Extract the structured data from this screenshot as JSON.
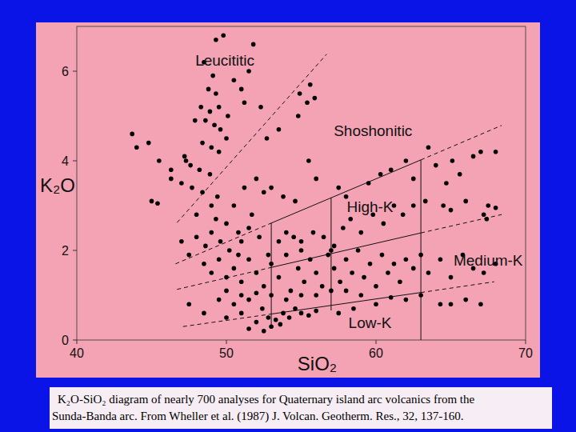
{
  "chart_data": {
    "type": "scatter",
    "x_label": "SiO₂",
    "y_label": "K₂O",
    "xlim": [
      40,
      70
    ],
    "ylim": [
      0,
      7
    ],
    "xticks": [
      40,
      50,
      60,
      70
    ],
    "yticks": [
      0,
      2,
      4,
      6
    ],
    "grid": false,
    "marker": "circle",
    "color": "#000000",
    "x": [
      49.3,
      49.8,
      51.8,
      48.5,
      49.1,
      51.5,
      48.8,
      49.3,
      50.5,
      51.0,
      48.3,
      48.9,
      49.5,
      50.1,
      51.2,
      47.9,
      48.6,
      49.2,
      49.6,
      50.0,
      48.4,
      49.0,
      49.5,
      47.2,
      47.6,
      48.2,
      48.9,
      47.0,
      47.7,
      48.4,
      49.4,
      52.3,
      52.7,
      53.5,
      54.8,
      55.4,
      55.9,
      54.9,
      55.6,
      43.7,
      44.0,
      44.8,
      45.5,
      46.3,
      45.0,
      45.4,
      46.3,
      47.3,
      50.5,
      51.2,
      52.0,
      52.5,
      53.0,
      53.8,
      54.6,
      55.5,
      56.0,
      57.5,
      58.0,
      59.5,
      60.3,
      61.0,
      62.0,
      63.5,
      64.0,
      64.7,
      65.1,
      65.6,
      66.5,
      67.0,
      68.0,
      62.5,
      49.0,
      48.0,
      50.0,
      49.3,
      51.7,
      50.8,
      47.0,
      47.5,
      48.0,
      48.6,
      49.0,
      49.6,
      50.2,
      51.0,
      51.5,
      52.2,
      53.5,
      54.0,
      54.5,
      55.0,
      55.8,
      56.5,
      57.2,
      57.8,
      58.3,
      59.0,
      59.8,
      60.5,
      61.2,
      61.8,
      62.5,
      63.3,
      64.5,
      65.0,
      66.0,
      67.5,
      68.0,
      67.4,
      67.2,
      48.5,
      49.0,
      49.5,
      50.0,
      50.5,
      51.0,
      51.5,
      52.0,
      52.5,
      53.0,
      53.5,
      54.0,
      54.3,
      54.8,
      55.2,
      55.6,
      56.0,
      56.4,
      56.8,
      57.2,
      57.6,
      58.0,
      58.4,
      58.8,
      59.2,
      59.6,
      60.0,
      60.4,
      60.8,
      61.2,
      61.6,
      62.0,
      62.5,
      63.5,
      64.3,
      65.0,
      65.8,
      66.5,
      67.2,
      68.0,
      63.0,
      55.0,
      52.8,
      50.8,
      57.0,
      47.5,
      48.5,
      49.5,
      50.0,
      50.5,
      51.0,
      51.5,
      52.0,
      52.4,
      52.8,
      53.0,
      53.3,
      53.6,
      53.8,
      54.2,
      54.6,
      55.0,
      55.5,
      56.0,
      57.5,
      58.5,
      60.0,
      62.0,
      64.3,
      65.0,
      66.0,
      67.0,
      63.0,
      61.0,
      51.5,
      52.5,
      50.0,
      51.0,
      52.0,
      53.0,
      54.0,
      55.0,
      56.0,
      57.0,
      58.0,
      59.0
    ],
    "values": [
      6.7,
      6.8,
      6.6,
      6.2,
      5.9,
      6.0,
      5.6,
      5.5,
      5.8,
      5.6,
      5.2,
      5.1,
      5.2,
      5.0,
      5.3,
      4.9,
      4.9,
      4.8,
      4.7,
      4.5,
      4.4,
      4.3,
      4.2,
      4.1,
      3.9,
      3.8,
      3.7,
      3.5,
      3.4,
      3.3,
      3.2,
      5.2,
      4.5,
      4.7,
      5.0,
      5.3,
      5.4,
      5.5,
      5.7,
      4.6,
      4.3,
      4.4,
      4.0,
      3.6,
      3.1,
      3.05,
      3.8,
      4.0,
      3.0,
      3.4,
      3.6,
      3.3,
      3.4,
      3.2,
      3.1,
      4.0,
      3.6,
      3.4,
      3.2,
      3.5,
      3.7,
      3.8,
      4.0,
      4.3,
      3.9,
      3.5,
      4.0,
      3.7,
      4.1,
      4.2,
      4.2,
      3.6,
      3.0,
      2.8,
      2.6,
      2.7,
      2.8,
      2.4,
      2.2,
      1.9,
      2.3,
      2.1,
      2.4,
      2.2,
      2.0,
      2.2,
      2.5,
      2.3,
      2.2,
      2.4,
      2.3,
      2.2,
      2.4,
      2.3,
      2.1,
      2.5,
      2.7,
      2.4,
      2.8,
      2.6,
      3.0,
      2.8,
      3.0,
      3.1,
      3.0,
      2.9,
      3.1,
      3.0,
      2.95,
      2.7,
      2.8,
      1.7,
      1.5,
      1.8,
      1.4,
      1.6,
      1.3,
      1.8,
      1.5,
      1.2,
      1.7,
      1.4,
      1.9,
      1.1,
      1.6,
      1.3,
      1.8,
      1.5,
      1.2,
      1.9,
      1.6,
      1.3,
      1.8,
      1.5,
      2.0,
      1.4,
      1.7,
      1.2,
      1.9,
      1.5,
      1.7,
      1.3,
      1.8,
      1.6,
      1.5,
      1.8,
      1.4,
      1.9,
      1.6,
      1.5,
      1.7,
      1.9,
      2.0,
      1.9,
      1.9,
      2.0,
      0.8,
      0.6,
      0.9,
      0.5,
      0.8,
      0.6,
      0.9,
      0.4,
      0.7,
      0.5,
      0.3,
      0.45,
      0.35,
      0.6,
      0.5,
      0.7,
      0.6,
      0.55,
      0.65,
      0.6,
      0.7,
      0.8,
      0.9,
      0.8,
      0.8,
      0.9,
      0.8,
      1.0,
      0.95,
      0.25,
      0.2,
      1.1,
      1.0,
      1.05,
      1.0,
      0.9,
      1.0,
      1.0,
      1.1,
      1.1,
      1.0
    ],
    "lines": [
      {
        "x": [
          46.7,
          56.7
        ],
        "y": [
          2.62,
          6.38
        ],
        "line_style": "dashed"
      },
      {
        "x": [
          46.6,
          53
        ],
        "y": [
          1.7,
          2.61
        ],
        "line_style": "dashed"
      },
      {
        "x": [
          53,
          63
        ],
        "y": [
          2.61,
          4.02
        ],
        "line_style": "solid"
      },
      {
        "x": [
          63,
          68.4
        ],
        "y": [
          4.02,
          4.79
        ],
        "line_style": "dashed"
      },
      {
        "x": [
          46.7,
          53
        ],
        "y": [
          1.13,
          1.62
        ],
        "line_style": "dashed"
      },
      {
        "x": [
          53,
          63
        ],
        "y": [
          1.62,
          2.39
        ],
        "line_style": "solid"
      },
      {
        "x": [
          63,
          68.4
        ],
        "y": [
          2.39,
          2.8
        ],
        "line_style": "dashed"
      },
      {
        "x": [
          47.1,
          53
        ],
        "y": [
          0.3,
          0.58
        ],
        "line_style": "dashed"
      },
      {
        "x": [
          53,
          63
        ],
        "y": [
          0.58,
          1.06
        ],
        "line_style": "solid"
      },
      {
        "x": [
          63,
          67.9
        ],
        "y": [
          1.06,
          1.3
        ],
        "line_style": "dashed"
      },
      {
        "x": [
          53,
          53
        ],
        "y": [
          0.3,
          2.61
        ],
        "line_style": "solid"
      },
      {
        "x": [
          57,
          57
        ],
        "y": [
          0.66,
          3.18
        ],
        "line_style": "solid"
      },
      {
        "x": [
          63,
          63
        ],
        "y": [
          0,
          4.02
        ],
        "line_style": "solid"
      }
    ],
    "annotations": [
      {
        "text": "Leucititic",
        "x": 49.9,
        "y": 6.25
      },
      {
        "text": "Shoshonitic",
        "x": 59.8,
        "y": 4.68
      },
      {
        "text": "High-K",
        "x": 59.6,
        "y": 2.98
      },
      {
        "text": "Medium-K",
        "x": 67.5,
        "y": 1.79
      },
      {
        "text": "Low-K",
        "x": 59.6,
        "y": 0.39
      }
    ],
    "caption": [
      "K₂O-SiO₂ diagram of nearly 700 analyses for Quaternary island arc volcanics from the",
      "Sunda-Banda arc. From Wheller et al. (1987) J. Volcan. Geotherm. Res., 32, 137-160."
    ]
  }
}
